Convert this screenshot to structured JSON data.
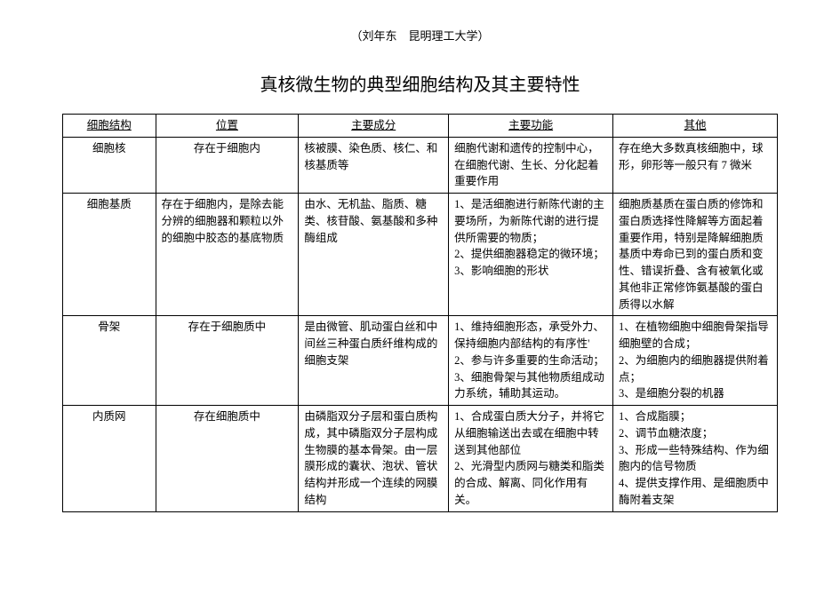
{
  "author_line": "（刘年东　昆明理工大学）",
  "title": "真核微生物的典型细胞结构及其主要特性",
  "headers": {
    "h1": "细胞结构",
    "h2": "位置",
    "h3": "主要成分",
    "h4": "主要功能",
    "h5": "其他"
  },
  "rows": {
    "r1": {
      "c1": "细胞核",
      "c2": "存在于细胞内",
      "c3": "核被膜、染色质、核仁、和核基质等",
      "c4": "细胞代谢和遗传的控制中心，在细胞代谢、生长、分化起着重要作用",
      "c5": "存在绝大多数真核细胞中，球形，卵形等一般只有 7 微米"
    },
    "r2": {
      "c1": "细胞基质",
      "c2": "存在于细胞内，是除去能分辨的细胞器和颗粒以外的细胞中胶态的基底物质",
      "c3": "由水、无机盐、脂质、糖类、核苷酸、氨基酸和多种酶组成",
      "c4": "1、是活细胞进行新陈代谢的主要场所，为新陈代谢的进行提供所需要的物质；\n2、提供细胞器稳定的微环境；\n3、影响细胞的形状",
      "c5": "细胞质基质在蛋白质的修饰和蛋白质选择性降解等方面起着重要作用，特别是降解细胞质基质中寿命已到的蛋白质和变性、错误折叠、含有被氧化或其他非正常修饰氨基酸的蛋白质得以水解"
    },
    "r3": {
      "c1": "骨架",
      "c2": "存在于细胞质中",
      "c3": "是由微管、肌动蛋白丝和中间丝三种蛋白质纤维构成的细胞支架",
      "c4": "1、维持细胞形态，承受外力、保持细胞内部结构的有序性'\n2、参与许多重要的生命活动；\n3、细胞骨架与其他物质组成动力系统，辅助其运动。",
      "c5": "1、在植物细胞中细胞骨架指导细胞壁的合成；\n2、为细胞内的细胞器提供附着点；\n3、是细胞分裂的机器"
    },
    "r4": {
      "c1": "内质网",
      "c2": "存在细胞质中",
      "c3": "由磷脂双分子层和蛋白质构成，其中磷脂双分子层构成生物膜的基本骨架。由一层膜形成的囊状、泡状、管状结构并形成一个连续的网膜结构",
      "c4": "1、合成蛋白质大分子，并将它从细胞输送出去或在细胞中转送到其他部位\n2、光滑型内质网与糖类和脂类的合成、解离、同化作用有关。",
      "c5": "1、合成脂膜；\n2、调节血糖浓度；\n3、形成一些特殊结构、作为细胞内的信号物质\n4、提供支撑作用、是细胞质中酶附着支架"
    }
  }
}
